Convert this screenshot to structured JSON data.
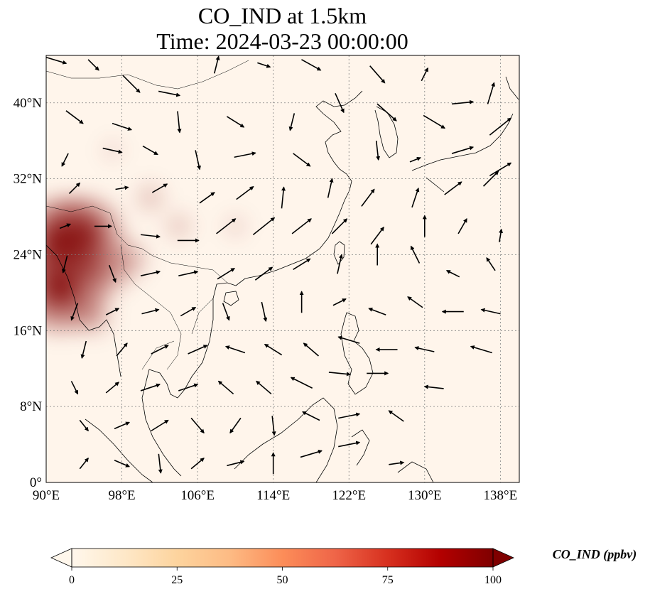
{
  "title": {
    "line1": "CO_IND at 1.5km",
    "line2": "Time: 2024-03-23 00:00:00"
  },
  "axes": {
    "lon_ticks": [
      "90°E",
      "98°E",
      "106°E",
      "114°E",
      "122°E",
      "130°E",
      "138°E"
    ],
    "lat_ticks": [
      "0°",
      "8°N",
      "16°N",
      "24°N",
      "32°N",
      "40°N"
    ],
    "lon_range": [
      90,
      140
    ],
    "lat_range": [
      0,
      45
    ],
    "gridlines": true
  },
  "colorbar": {
    "label": "CO_IND (ppbv)",
    "ticks": [
      "0",
      "25",
      "50",
      "75",
      "100"
    ],
    "range": [
      0,
      100
    ],
    "colormap": "OrRd",
    "extend": "both"
  },
  "colors": {
    "background_field": "#fff5eb",
    "high": "#7f0000",
    "wind_vectors": "#000000",
    "coastline": "#000000",
    "grid": "#808080"
  },
  "field_hotspots": [
    {
      "lon": 91.5,
      "lat": 20.5,
      "value": 100
    },
    {
      "lon": 91.5,
      "lat": 25.5,
      "value": 95
    },
    {
      "lon": 94.0,
      "lat": 26.0,
      "value": 85
    },
    {
      "lon": 96.0,
      "lat": 22.0,
      "value": 45
    },
    {
      "lon": 98.5,
      "lat": 23.5,
      "value": 35
    },
    {
      "lon": 101.0,
      "lat": 30.0,
      "value": 20
    },
    {
      "lon": 104.0,
      "lat": 27.0,
      "value": 18
    },
    {
      "lon": 110.0,
      "lat": 27.0,
      "value": 12
    },
    {
      "lon": 97.0,
      "lat": 35.0,
      "value": 10
    },
    {
      "lon": 95.0,
      "lat": 17.5,
      "value": 30
    }
  ],
  "wind_vectors": [
    {
      "lon": 91,
      "lat": 44.5,
      "u": 1,
      "v": -0.3
    },
    {
      "lon": 95,
      "lat": 44,
      "u": 0.5,
      "v": -0.5
    },
    {
      "lon": 99,
      "lat": 42,
      "u": 0.8,
      "v": -0.8
    },
    {
      "lon": 103,
      "lat": 41,
      "u": 1,
      "v": -0.2
    },
    {
      "lon": 108,
      "lat": 44,
      "u": 0.2,
      "v": 0.8
    },
    {
      "lon": 113,
      "lat": 44,
      "u": 0.6,
      "v": -0.2
    },
    {
      "lon": 118,
      "lat": 44,
      "u": 0.9,
      "v": -0.5
    },
    {
      "lon": 125,
      "lat": 43,
      "u": 0.7,
      "v": -0.8
    },
    {
      "lon": 130,
      "lat": 43,
      "u": 0.3,
      "v": 0.6
    },
    {
      "lon": 137,
      "lat": 41,
      "u": 0.3,
      "v": 1
    },
    {
      "lon": 93,
      "lat": 38.5,
      "u": 0.8,
      "v": -0.6
    },
    {
      "lon": 98,
      "lat": 37.5,
      "u": 0.9,
      "v": -0.3
    },
    {
      "lon": 104,
      "lat": 38,
      "u": 0.1,
      "v": -1
    },
    {
      "lon": 110,
      "lat": 38,
      "u": 0.8,
      "v": -0.5
    },
    {
      "lon": 116,
      "lat": 38,
      "u": -0.2,
      "v": -0.8
    },
    {
      "lon": 121,
      "lat": 40,
      "u": 0.4,
      "v": -0.9
    },
    {
      "lon": 126,
      "lat": 39,
      "u": 0.9,
      "v": -0.8
    },
    {
      "lon": 131,
      "lat": 38,
      "u": 1,
      "v": -0.6
    },
    {
      "lon": 134,
      "lat": 40,
      "u": 1,
      "v": 0.1
    },
    {
      "lon": 138,
      "lat": 37.5,
      "u": 1,
      "v": 0.8
    },
    {
      "lon": 92,
      "lat": 34,
      "u": -0.3,
      "v": -0.6
    },
    {
      "lon": 97,
      "lat": 35,
      "u": 0.9,
      "v": -0.2
    },
    {
      "lon": 101,
      "lat": 35,
      "u": 0.7,
      "v": -0.4
    },
    {
      "lon": 106,
      "lat": 34,
      "u": 0.2,
      "v": -0.9
    },
    {
      "lon": 111,
      "lat": 34.5,
      "u": 1,
      "v": 0.2
    },
    {
      "lon": 117,
      "lat": 34,
      "u": 0.8,
      "v": -0.6
    },
    {
      "lon": 125,
      "lat": 35,
      "u": 0.1,
      "v": -0.9
    },
    {
      "lon": 129,
      "lat": 34,
      "u": 0.5,
      "v": 0.2
    },
    {
      "lon": 134,
      "lat": 35,
      "u": 1,
      "v": 0.3
    },
    {
      "lon": 138,
      "lat": 33,
      "u": 1,
      "v": 0.6
    },
    {
      "lon": 93,
      "lat": 31,
      "u": 0.5,
      "v": 0.5
    },
    {
      "lon": 98,
      "lat": 31,
      "u": 0.6,
      "v": 0.1
    },
    {
      "lon": 102,
      "lat": 31,
      "u": 0.7,
      "v": 0.4
    },
    {
      "lon": 107,
      "lat": 30,
      "u": 0.7,
      "v": 0.5
    },
    {
      "lon": 111,
      "lat": 30.5,
      "u": 0.8,
      "v": 0.6
    },
    {
      "lon": 115,
      "lat": 30,
      "u": 0.1,
      "v": 1
    },
    {
      "lon": 120,
      "lat": 31,
      "u": 0.2,
      "v": 0.9
    },
    {
      "lon": 124,
      "lat": 30,
      "u": 0.6,
      "v": 0.8
    },
    {
      "lon": 129,
      "lat": 30,
      "u": 0.3,
      "v": 0.9
    },
    {
      "lon": 133,
      "lat": 31,
      "u": 0.8,
      "v": 0.6
    },
    {
      "lon": 137,
      "lat": 32,
      "u": 0.7,
      "v": 0.7
    },
    {
      "lon": 92,
      "lat": 27,
      "u": 0.5,
      "v": 0.2
    },
    {
      "lon": 96,
      "lat": 27,
      "u": 0.8,
      "v": 0
    },
    {
      "lon": 101,
      "lat": 26,
      "u": 0.9,
      "v": -0.1
    },
    {
      "lon": 105,
      "lat": 25.5,
      "u": 1,
      "v": 0
    },
    {
      "lon": 109,
      "lat": 27,
      "u": 0.9,
      "v": 0.7
    },
    {
      "lon": 113,
      "lat": 27,
      "u": 1,
      "v": 0.8
    },
    {
      "lon": 117,
      "lat": 27,
      "u": 0.9,
      "v": 0.7
    },
    {
      "lon": 121,
      "lat": 27,
      "u": 0.7,
      "v": 0.7
    },
    {
      "lon": 125,
      "lat": 26,
      "u": 0.6,
      "v": 0.8
    },
    {
      "lon": 130,
      "lat": 27,
      "u": 0,
      "v": 1
    },
    {
      "lon": 134,
      "lat": 27,
      "u": 0.4,
      "v": 0.7
    },
    {
      "lon": 138,
      "lat": 26,
      "u": 0.1,
      "v": 0.6
    },
    {
      "lon": 92,
      "lat": 23,
      "u": -0.2,
      "v": -0.8
    },
    {
      "lon": 97,
      "lat": 22,
      "u": 0.3,
      "v": -0.8
    },
    {
      "lon": 101,
      "lat": 22,
      "u": 0.9,
      "v": 0.2
    },
    {
      "lon": 105,
      "lat": 22,
      "u": 0.9,
      "v": 0.2
    },
    {
      "lon": 109,
      "lat": 22,
      "u": 0.8,
      "v": 0.5
    },
    {
      "lon": 113,
      "lat": 22,
      "u": 0.8,
      "v": 0.6
    },
    {
      "lon": 117,
      "lat": 23,
      "u": 0.8,
      "v": 0.5
    },
    {
      "lon": 121,
      "lat": 23,
      "u": 0.2,
      "v": 0.9
    },
    {
      "lon": 125,
      "lat": 24,
      "u": 0,
      "v": 1
    },
    {
      "lon": 129,
      "lat": 24,
      "u": -0.4,
      "v": 0.8
    },
    {
      "lon": 133,
      "lat": 22,
      "u": -0.6,
      "v": 0.3
    },
    {
      "lon": 137,
      "lat": 23,
      "u": -0.4,
      "v": 0.6
    },
    {
      "lon": 93,
      "lat": 18,
      "u": -0.3,
      "v": -0.8
    },
    {
      "lon": 97,
      "lat": 18,
      "u": 0.6,
      "v": 0.3
    },
    {
      "lon": 101,
      "lat": 18,
      "u": 0.8,
      "v": 0.2
    },
    {
      "lon": 105,
      "lat": 18,
      "u": 0.7,
      "v": 0.4
    },
    {
      "lon": 109,
      "lat": 18,
      "u": 0.3,
      "v": -0.8
    },
    {
      "lon": 113,
      "lat": 18,
      "u": 0.2,
      "v": -0.9
    },
    {
      "lon": 117,
      "lat": 19,
      "u": 0,
      "v": 1
    },
    {
      "lon": 121,
      "lat": 19,
      "u": 0.6,
      "v": 0.3
    },
    {
      "lon": 125,
      "lat": 18,
      "u": -0.8,
      "v": 0.3
    },
    {
      "lon": 129,
      "lat": 19,
      "u": -0.7,
      "v": 0.5
    },
    {
      "lon": 133,
      "lat": 18,
      "u": -1,
      "v": 0
    },
    {
      "lon": 137,
      "lat": 18,
      "u": -0.9,
      "v": 0.2
    },
    {
      "lon": 94,
      "lat": 14,
      "u": -0.2,
      "v": -0.8
    },
    {
      "lon": 98,
      "lat": 14,
      "u": 0.5,
      "v": 0.6
    },
    {
      "lon": 102,
      "lat": 14,
      "u": 0.8,
      "v": 0.4
    },
    {
      "lon": 106,
      "lat": 14,
      "u": 0.9,
      "v": 0.4
    },
    {
      "lon": 110,
      "lat": 14,
      "u": -0.9,
      "v": 0.3
    },
    {
      "lon": 114,
      "lat": 14,
      "u": -0.8,
      "v": 0.5
    },
    {
      "lon": 118,
      "lat": 14,
      "u": -0.7,
      "v": 0.6
    },
    {
      "lon": 122,
      "lat": 15,
      "u": -1,
      "v": 0.3
    },
    {
      "lon": 126,
      "lat": 14,
      "u": -1,
      "v": 0
    },
    {
      "lon": 130,
      "lat": 14,
      "u": -0.9,
      "v": 0.2
    },
    {
      "lon": 136,
      "lat": 14,
      "u": -1,
      "v": 0.3
    },
    {
      "lon": 93,
      "lat": 10,
      "u": 0.3,
      "v": -0.6
    },
    {
      "lon": 97,
      "lat": 10,
      "u": 0.6,
      "v": 0.5
    },
    {
      "lon": 101,
      "lat": 10,
      "u": 0.9,
      "v": 0.3
    },
    {
      "lon": 105,
      "lat": 10,
      "u": 0.9,
      "v": 0.3
    },
    {
      "lon": 109,
      "lat": 10,
      "u": -0.7,
      "v": 0.6
    },
    {
      "lon": 113,
      "lat": 10,
      "u": -0.7,
      "v": 0.6
    },
    {
      "lon": 117,
      "lat": 10.5,
      "u": -1,
      "v": 0.5
    },
    {
      "lon": 121,
      "lat": 11.5,
      "u": 1,
      "v": -0.1
    },
    {
      "lon": 125,
      "lat": 11.5,
      "u": 1,
      "v": 0
    },
    {
      "lon": 131,
      "lat": 10,
      "u": -0.9,
      "v": 0.1
    },
    {
      "lon": 94,
      "lat": 6,
      "u": 0.4,
      "v": -0.5
    },
    {
      "lon": 98,
      "lat": 6,
      "u": 0.7,
      "v": 0.3
    },
    {
      "lon": 102,
      "lat": 6,
      "u": 0.8,
      "v": 0.5
    },
    {
      "lon": 106,
      "lat": 6,
      "u": 0.6,
      "v": -0.7
    },
    {
      "lon": 110,
      "lat": 6,
      "u": -0.5,
      "v": -0.7
    },
    {
      "lon": 114,
      "lat": 6,
      "u": 0.1,
      "v": -0.9
    },
    {
      "lon": 118,
      "lat": 7,
      "u": -0.8,
      "v": 0.4
    },
    {
      "lon": 122,
      "lat": 7,
      "u": 1,
      "v": 0.2
    },
    {
      "lon": 127,
      "lat": 7,
      "u": -0.7,
      "v": 0.5
    },
    {
      "lon": 94,
      "lat": 2,
      "u": 0.4,
      "v": 0.5
    },
    {
      "lon": 98,
      "lat": 2,
      "u": 0.7,
      "v": -0.3
    },
    {
      "lon": 102,
      "lat": 2,
      "u": 0.1,
      "v": -0.9
    },
    {
      "lon": 106,
      "lat": 2,
      "u": 0.6,
      "v": 0.5
    },
    {
      "lon": 110,
      "lat": 2,
      "u": 0.8,
      "v": 0.2
    },
    {
      "lon": 114,
      "lat": 2,
      "u": 0,
      "v": 1
    },
    {
      "lon": 118,
      "lat": 3,
      "u": 1,
      "v": 0.3
    },
    {
      "lon": 122,
      "lat": 4,
      "u": 1,
      "v": 0.2
    },
    {
      "lon": 127,
      "lat": 2,
      "u": 0.7,
      "v": 0.1
    }
  ]
}
